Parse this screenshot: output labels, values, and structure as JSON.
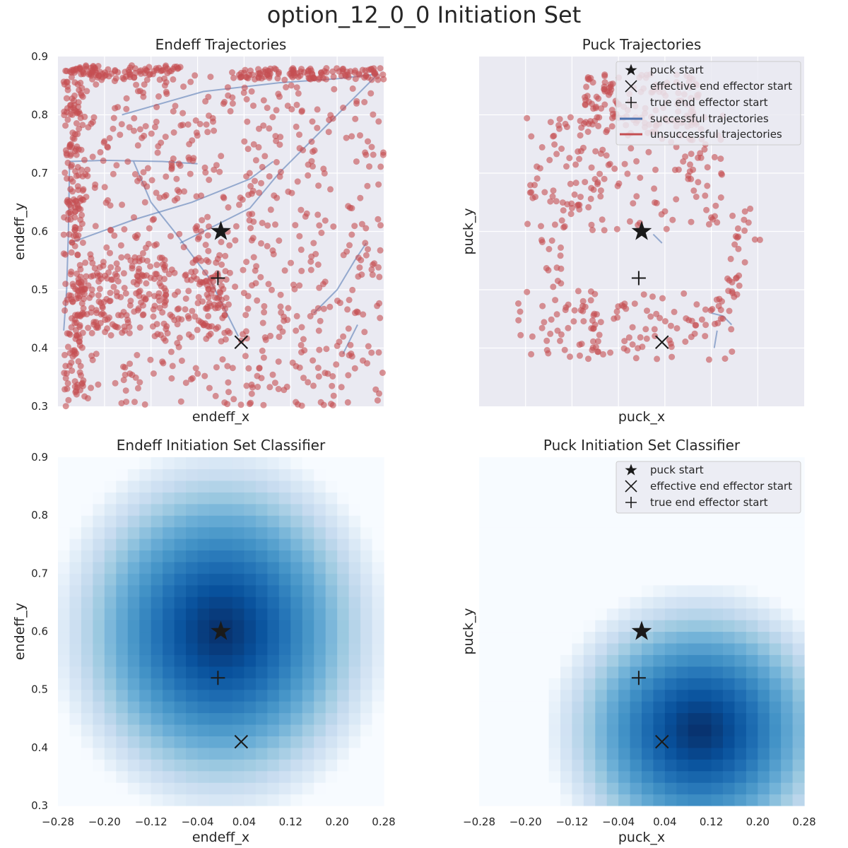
{
  "figure": {
    "title": "option_12_0_0 Initiation Set"
  },
  "colors": {
    "axes_bg": "#eaeaf2",
    "grid": "#ffffff",
    "success": "#4c72b0",
    "fail": "#c44e52",
    "marker": "#1a1a1a",
    "cmap_low": "#f7fbff",
    "cmap_high": "#08306b"
  },
  "chart_data": [
    {
      "id": "endeff_traj",
      "type": "scatter",
      "title": "Endeff Trajectories",
      "xlabel": "endeff_x",
      "ylabel": "endeff_y",
      "xlim": [
        -0.28,
        0.28
      ],
      "ylim": [
        0.3,
        0.9
      ],
      "xticks": [],
      "yticks": [
        "0.3",
        "0.4",
        "0.5",
        "0.6",
        "0.7",
        "0.8",
        "0.9"
      ],
      "grid": true,
      "markers": {
        "puck_start": [
          0.0,
          0.6
        ],
        "effective_end_effector_start": [
          0.035,
          0.41
        ],
        "true_end_effector_start": [
          -0.005,
          0.52
        ]
      },
      "successful_trajectories": [
        [
          [
            -0.27,
            0.43
          ],
          [
            -0.265,
            0.5
          ],
          [
            -0.262,
            0.6
          ],
          [
            -0.26,
            0.72
          ]
        ],
        [
          [
            -0.26,
            0.72
          ],
          [
            -0.2,
            0.722
          ],
          [
            -0.1,
            0.72
          ],
          [
            -0.04,
            0.716
          ]
        ],
        [
          [
            -0.26,
            0.58
          ],
          [
            -0.15,
            0.62
          ],
          [
            -0.05,
            0.65
          ],
          [
            0.05,
            0.69
          ],
          [
            0.09,
            0.72
          ]
        ],
        [
          [
            -0.15,
            0.72
          ],
          [
            -0.12,
            0.65
          ],
          [
            -0.08,
            0.6
          ],
          [
            -0.02,
            0.52
          ],
          [
            0.01,
            0.46
          ],
          [
            0.03,
            0.42
          ]
        ],
        [
          [
            -0.17,
            0.8
          ],
          [
            -0.03,
            0.84
          ],
          [
            0.1,
            0.855
          ],
          [
            0.2,
            0.862
          ],
          [
            0.27,
            0.87
          ]
        ],
        [
          [
            -0.07,
            0.58
          ],
          [
            0.05,
            0.64
          ],
          [
            0.1,
            0.7
          ],
          [
            0.18,
            0.78
          ],
          [
            0.27,
            0.87
          ]
        ],
        [
          [
            0.16,
            0.46
          ],
          [
            0.2,
            0.5
          ],
          [
            0.23,
            0.55
          ],
          [
            0.25,
            0.58
          ]
        ],
        [
          [
            0.21,
            0.39
          ],
          [
            0.22,
            0.41
          ],
          [
            0.235,
            0.44
          ]
        ]
      ],
      "unsuccessful_points": "dense cloud of trajectory points across x[-0.28, 0.28], y[0.3, 0.88]"
    },
    {
      "id": "puck_traj",
      "type": "scatter",
      "title": "Puck Trajectories",
      "xlabel": "puck_x",
      "ylabel": "puck_y",
      "xlim": [
        -0.28,
        0.28
      ],
      "ylim": [
        0.3,
        0.9
      ],
      "xticks": [],
      "yticks": [],
      "grid": true,
      "legend": {
        "placement": "top-right",
        "entries": [
          "puck start",
          "effective end effector start",
          "true end effector start",
          "successful trajectories",
          "unsuccessful trajectories"
        ]
      },
      "markers": {
        "puck_start": [
          0.0,
          0.6
        ],
        "effective_end_effector_start": [
          0.035,
          0.41
        ],
        "true_end_effector_start": [
          -0.005,
          0.52
        ]
      },
      "successful_trajectories": [
        [
          [
            0.02,
            0.595
          ],
          [
            0.035,
            0.58
          ]
        ],
        [
          [
            0.12,
            0.46
          ],
          [
            0.14,
            0.455
          ],
          [
            0.155,
            0.44
          ]
        ],
        [
          [
            0.13,
            0.43
          ],
          [
            0.125,
            0.4
          ]
        ]
      ],
      "unsuccessful_points": "clustered trajectory points around x[-0.2, 0.16], y[0.34, 0.88]"
    },
    {
      "id": "endeff_classifier",
      "type": "heatmap",
      "title": "Endeff Initiation Set Classifier",
      "xlabel": "endeff_x",
      "ylabel": "endeff_y",
      "xlim": [
        -0.28,
        0.28
      ],
      "ylim": [
        0.3,
        0.9
      ],
      "xticks": [
        "−0.28",
        "−0.20",
        "−0.12",
        "−0.04",
        "0.04",
        "0.12",
        "0.20",
        "0.28"
      ],
      "yticks": [
        "0.3",
        "0.4",
        "0.5",
        "0.6",
        "0.7",
        "0.8",
        "0.9"
      ],
      "grid": false,
      "colormap": "Blues",
      "peak": [
        0.0,
        0.6
      ],
      "radius_x": 0.3,
      "radius_y": 0.33,
      "markers": {
        "puck_start": [
          0.0,
          0.6
        ],
        "effective_end_effector_start": [
          0.035,
          0.41
        ],
        "true_end_effector_start": [
          -0.005,
          0.52
        ]
      }
    },
    {
      "id": "puck_classifier",
      "type": "heatmap",
      "title": "Puck Initiation Set Classifier",
      "xlabel": "puck_x",
      "ylabel": "puck_y",
      "xlim": [
        -0.28,
        0.28
      ],
      "ylim": [
        0.3,
        0.9
      ],
      "xticks": [
        "−0.28",
        "−0.20",
        "−0.12",
        "−0.04",
        "0.04",
        "0.12",
        "0.20",
        "0.28"
      ],
      "yticks": [],
      "grid": false,
      "colormap": "Blues",
      "peak": [
        0.1,
        0.43
      ],
      "radius_x": 0.27,
      "radius_y": 0.26,
      "legend": {
        "placement": "top-right",
        "entries": [
          "puck start",
          "effective end effector start",
          "true end effector start"
        ]
      },
      "markers": {
        "puck_start": [
          0.0,
          0.6
        ],
        "effective_end_effector_start": [
          0.035,
          0.41
        ],
        "true_end_effector_start": [
          -0.005,
          0.52
        ]
      }
    }
  ]
}
